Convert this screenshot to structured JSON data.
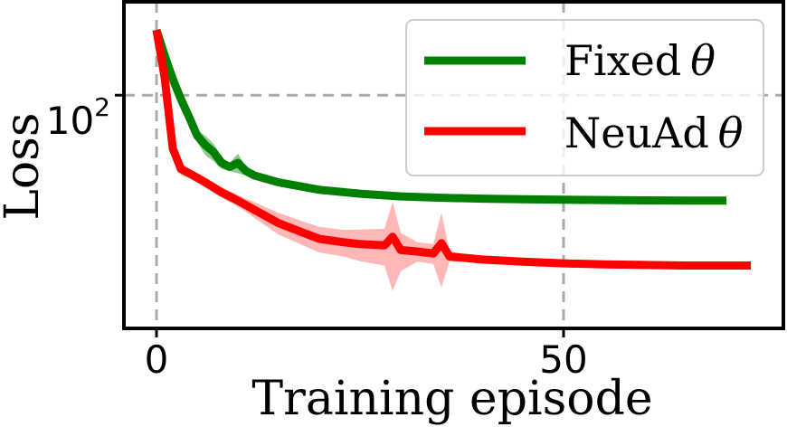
{
  "chart_data": {
    "type": "line",
    "xlabel": "Training episode",
    "ylabel": "Loss",
    "xlim": [
      -4,
      77
    ],
    "ylim": [
      9.2,
      260
    ],
    "yscale": "log",
    "xticks": [
      0,
      50
    ],
    "xtick_labels": [
      "0",
      "50"
    ],
    "yticks": [
      100
    ],
    "ytick_labels": {
      "base": "10",
      "exp": "2"
    },
    "grid": true,
    "legend_position": "upper right",
    "series": [
      {
        "name": "Fixed",
        "symbol": "θ",
        "color": "#008000",
        "band_color": "#7fbf7f",
        "x": [
          0,
          1,
          2,
          3,
          4,
          5,
          6,
          7,
          8,
          9,
          10,
          11,
          12,
          15,
          20,
          25,
          30,
          35,
          40,
          45,
          50,
          55,
          60,
          65,
          70
        ],
        "y": [
          195,
          150,
          118,
          96,
          80,
          66,
          60,
          56,
          50,
          48,
          50,
          46,
          44,
          41,
          38,
          36.5,
          35.5,
          35,
          34.7,
          34.5,
          34.3,
          34.2,
          34.1,
          34.0,
          34.0
        ],
        "band_width": [
          0,
          0,
          0,
          0,
          0,
          4,
          6,
          5,
          3,
          2,
          5,
          2,
          1,
          0.5,
          0.3,
          0.3,
          0.3,
          0.3,
          0.3,
          0.3,
          0.3,
          0.3,
          0.3,
          0.3,
          0.3
        ]
      },
      {
        "name": "NeuAd",
        "symbol": "θ",
        "color": "#ff0000",
        "band_color": "#ffaaaa",
        "x": [
          0,
          1,
          2,
          3,
          4,
          5,
          6,
          8,
          10,
          12,
          15,
          18,
          20,
          23,
          25,
          28,
          29,
          30,
          32,
          34,
          35,
          36,
          40,
          45,
          50,
          55,
          60,
          65,
          70,
          73
        ],
        "y": [
          195,
          120,
          58,
          47,
          45,
          43,
          41,
          37,
          34,
          31,
          27,
          24.5,
          23,
          22.2,
          21.8,
          21.5,
          23.5,
          20.5,
          20.2,
          19.8,
          22,
          19.2,
          18.6,
          18.2,
          17.9,
          17.7,
          17.6,
          17.5,
          17.5,
          17.5
        ],
        "band_width": [
          0,
          25,
          6,
          3,
          2,
          2,
          2,
          2,
          2,
          2.5,
          3,
          3,
          3,
          3,
          3.5,
          4,
          10,
          4,
          2,
          2,
          8,
          1,
          0.5,
          0.5,
          0.5,
          0.5,
          0.5,
          0.5,
          0.5,
          0.5
        ]
      }
    ]
  }
}
